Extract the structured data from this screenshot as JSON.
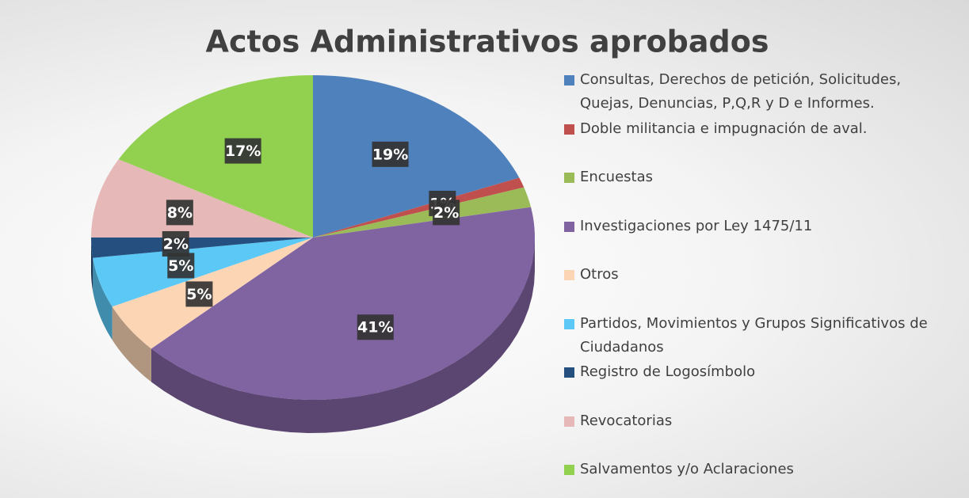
{
  "chart_data": {
    "type": "pie",
    "title": "Actos Administrativos aprobados",
    "categories": [
      "Consultas, Derechos de petición, Solicitudes, Quejas, Denuncias, P,Q,R y D  e Informes.",
      "Doble militancia e impugnación de aval.",
      "Encuestas",
      "Investigaciones por Ley 1475/11",
      "Otros",
      "Partidos, Movimientos y Grupos Significativos de Ciudadanos",
      "Registro de Logosímbolo",
      "Revocatorias",
      "Salvamentos y/o Aclaraciones"
    ],
    "values": [
      19,
      1,
      2,
      41,
      5,
      5,
      2,
      8,
      17
    ],
    "value_labels": [
      "19%",
      "1%",
      "2%",
      "41%",
      "5%",
      "5%",
      "2%",
      "8%",
      "17%"
    ],
    "colors": [
      "#4f81bd",
      "#c0504d",
      "#9bbb59",
      "#8064a2",
      "#fcd5b5",
      "#5bc8f5",
      "#254f7e",
      "#e6b9b8",
      "#92d050"
    ],
    "legend": "right"
  }
}
